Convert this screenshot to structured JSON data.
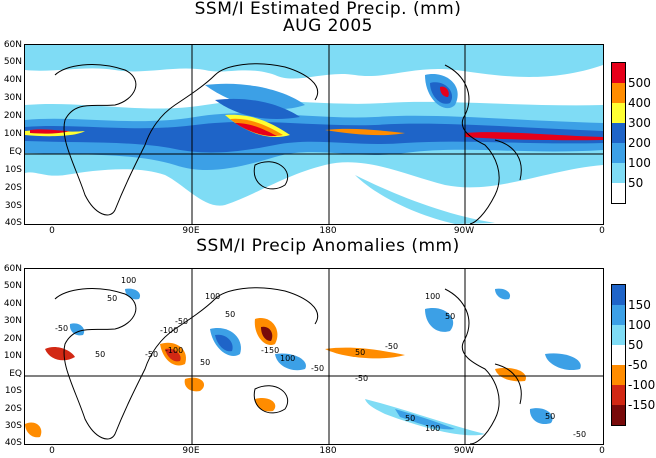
{
  "top_panel": {
    "title_line1": "SSM/I Estimated Precip. (mm)",
    "title_line2": "AUG 2005",
    "colorbar": {
      "labels": [
        "500",
        "400",
        "300",
        "200",
        "100",
        "50"
      ],
      "colors": [
        "#e6001a",
        "#ff8c00",
        "#ffff33",
        "#1e64c8",
        "#3ca0e6",
        "#7fdcf5",
        "#ffffff"
      ]
    }
  },
  "bottom_panel": {
    "title": "SSM/I Precip Anomalies (mm)",
    "colorbar": {
      "labels": [
        "150",
        "100",
        "50",
        "-50",
        "-100",
        "-150"
      ],
      "colors": [
        "#1e64c8",
        "#3ca0e6",
        "#7fdcf5",
        "#ffffff",
        "#ff8c00",
        "#d22814",
        "#780a0a"
      ]
    }
  },
  "lat_labels": [
    "60N",
    "50N",
    "40N",
    "30N",
    "20N",
    "10N",
    "EQ",
    "10S",
    "20S",
    "30S",
    "40S"
  ],
  "lon_labels": [
    "0",
    "90E",
    "180",
    "90W",
    "0"
  ],
  "contour_labels": [
    "100",
    "50",
    "-50",
    "100",
    "-50",
    "-100",
    "50",
    "-50",
    "50",
    "-100",
    "50",
    "-150",
    "100",
    "-50",
    "50",
    "-50",
    "100",
    "50",
    "-50",
    "50",
    "100",
    "50",
    "-50"
  ]
}
